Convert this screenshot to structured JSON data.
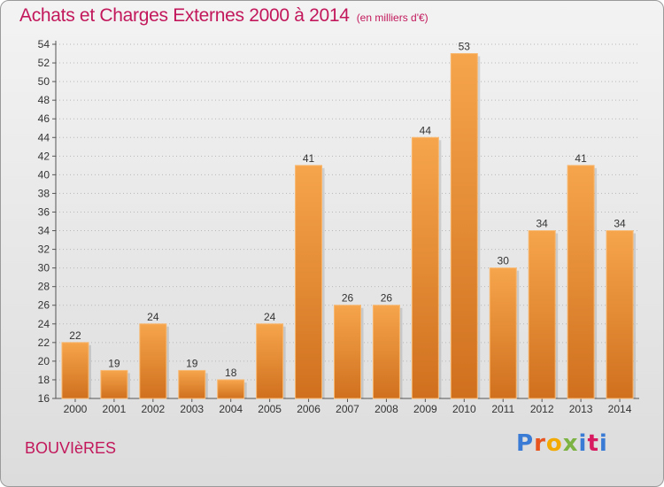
{
  "header": {
    "title": "Achats et Charges Externes 2000 à 2014",
    "subtitle": "(en milliers d'€)"
  },
  "footer": {
    "commune": "BOUVIèRES",
    "brand": "Proxiti",
    "brand_colors": [
      "#3a7bd5",
      "#e8541e",
      "#f2a900",
      "#7cb342",
      "#3a7bd5",
      "#d81b60",
      "#3a7bd5"
    ]
  },
  "colors": {
    "title": "#c2185b",
    "bar_top": "#f6a54c",
    "bar_bottom": "#d0701e",
    "grid": "#b8b8b8"
  },
  "chart_data": {
    "type": "bar",
    "categories": [
      "2000",
      "2001",
      "2002",
      "2003",
      "2004",
      "2005",
      "2006",
      "2007",
      "2008",
      "2009",
      "2010",
      "2011",
      "2012",
      "2013",
      "2014"
    ],
    "values": [
      22,
      19,
      24,
      19,
      18,
      24,
      41,
      26,
      26,
      44,
      53,
      30,
      34,
      41,
      34
    ],
    "ylim": [
      16,
      54
    ],
    "ytick_step": 2,
    "grid": "horizontal dotted",
    "legend": "none"
  }
}
